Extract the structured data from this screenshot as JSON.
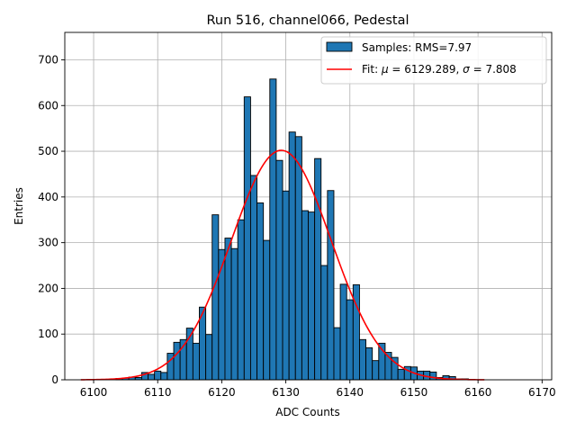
{
  "chart_data": {
    "type": "bar",
    "title": "Run 516, channel066, Pedestal",
    "xlabel": "ADC Counts",
    "ylabel": "Entries",
    "xlim": [
      6095.5,
      6171.5
    ],
    "ylim": [
      0,
      760
    ],
    "xticks": [
      6100,
      6110,
      6120,
      6130,
      6140,
      6150,
      6160,
      6170
    ],
    "yticks": [
      0,
      100,
      200,
      300,
      400,
      500,
      600,
      700
    ],
    "grid": true,
    "legend_position": "top-right",
    "histogram": {
      "label": "Samples: RMS=7.97",
      "color": "#1f77b4",
      "edge_color": "#000000",
      "bins": [
        {
          "x": 6104,
          "v": 3
        },
        {
          "x": 6105,
          "v": 4
        },
        {
          "x": 6106,
          "v": 6
        },
        {
          "x": 6107,
          "v": 5
        },
        {
          "x": 6108,
          "v": 16
        },
        {
          "x": 6109,
          "v": 12
        },
        {
          "x": 6110,
          "v": 19
        },
        {
          "x": 6111,
          "v": 16
        },
        {
          "x": 6112,
          "v": 58
        },
        {
          "x": 6113,
          "v": 82
        },
        {
          "x": 6114,
          "v": 88
        },
        {
          "x": 6115,
          "v": 113
        },
        {
          "x": 6116,
          "v": 80
        },
        {
          "x": 6117,
          "v": 159
        },
        {
          "x": 6118,
          "v": 99
        },
        {
          "x": 6119,
          "v": 361
        },
        {
          "x": 6120,
          "v": 285
        },
        {
          "x": 6121,
          "v": 310
        },
        {
          "x": 6122,
          "v": 287
        },
        {
          "x": 6123,
          "v": 350
        },
        {
          "x": 6124,
          "v": 619
        },
        {
          "x": 6125,
          "v": 447
        },
        {
          "x": 6126,
          "v": 387
        },
        {
          "x": 6127,
          "v": 305
        },
        {
          "x": 6128,
          "v": 658
        },
        {
          "x": 6129,
          "v": 480
        },
        {
          "x": 6130,
          "v": 413
        },
        {
          "x": 6131,
          "v": 542
        },
        {
          "x": 6132,
          "v": 532
        },
        {
          "x": 6133,
          "v": 370
        },
        {
          "x": 6134,
          "v": 367
        },
        {
          "x": 6135,
          "v": 484
        },
        {
          "x": 6136,
          "v": 250
        },
        {
          "x": 6137,
          "v": 414
        },
        {
          "x": 6138,
          "v": 114
        },
        {
          "x": 6139,
          "v": 209
        },
        {
          "x": 6140,
          "v": 175
        },
        {
          "x": 6141,
          "v": 208
        },
        {
          "x": 6142,
          "v": 88
        },
        {
          "x": 6143,
          "v": 70
        },
        {
          "x": 6144,
          "v": 42
        },
        {
          "x": 6145,
          "v": 80
        },
        {
          "x": 6146,
          "v": 60
        },
        {
          "x": 6147,
          "v": 49
        },
        {
          "x": 6148,
          "v": 23
        },
        {
          "x": 6149,
          "v": 29
        },
        {
          "x": 6150,
          "v": 28
        },
        {
          "x": 6151,
          "v": 19
        },
        {
          "x": 6152,
          "v": 19
        },
        {
          "x": 6153,
          "v": 17
        },
        {
          "x": 6154,
          "v": 5
        },
        {
          "x": 6155,
          "v": 9
        },
        {
          "x": 6156,
          "v": 7
        },
        {
          "x": 6157,
          "v": 2
        },
        {
          "x": 6158,
          "v": 2
        },
        {
          "x": 6159,
          "v": 1
        }
      ]
    },
    "fit": {
      "label_prefix": "Fit: ",
      "label_mu_symbol": "μ",
      "label_mid": " = 6129.289, ",
      "label_sigma_symbol": "σ",
      "label_end": " = 7.808",
      "color": "#ff0000",
      "mu": 6129.289,
      "sigma": 7.808,
      "amplitude": 502,
      "x_range": [
        6098,
        6161
      ]
    }
  }
}
